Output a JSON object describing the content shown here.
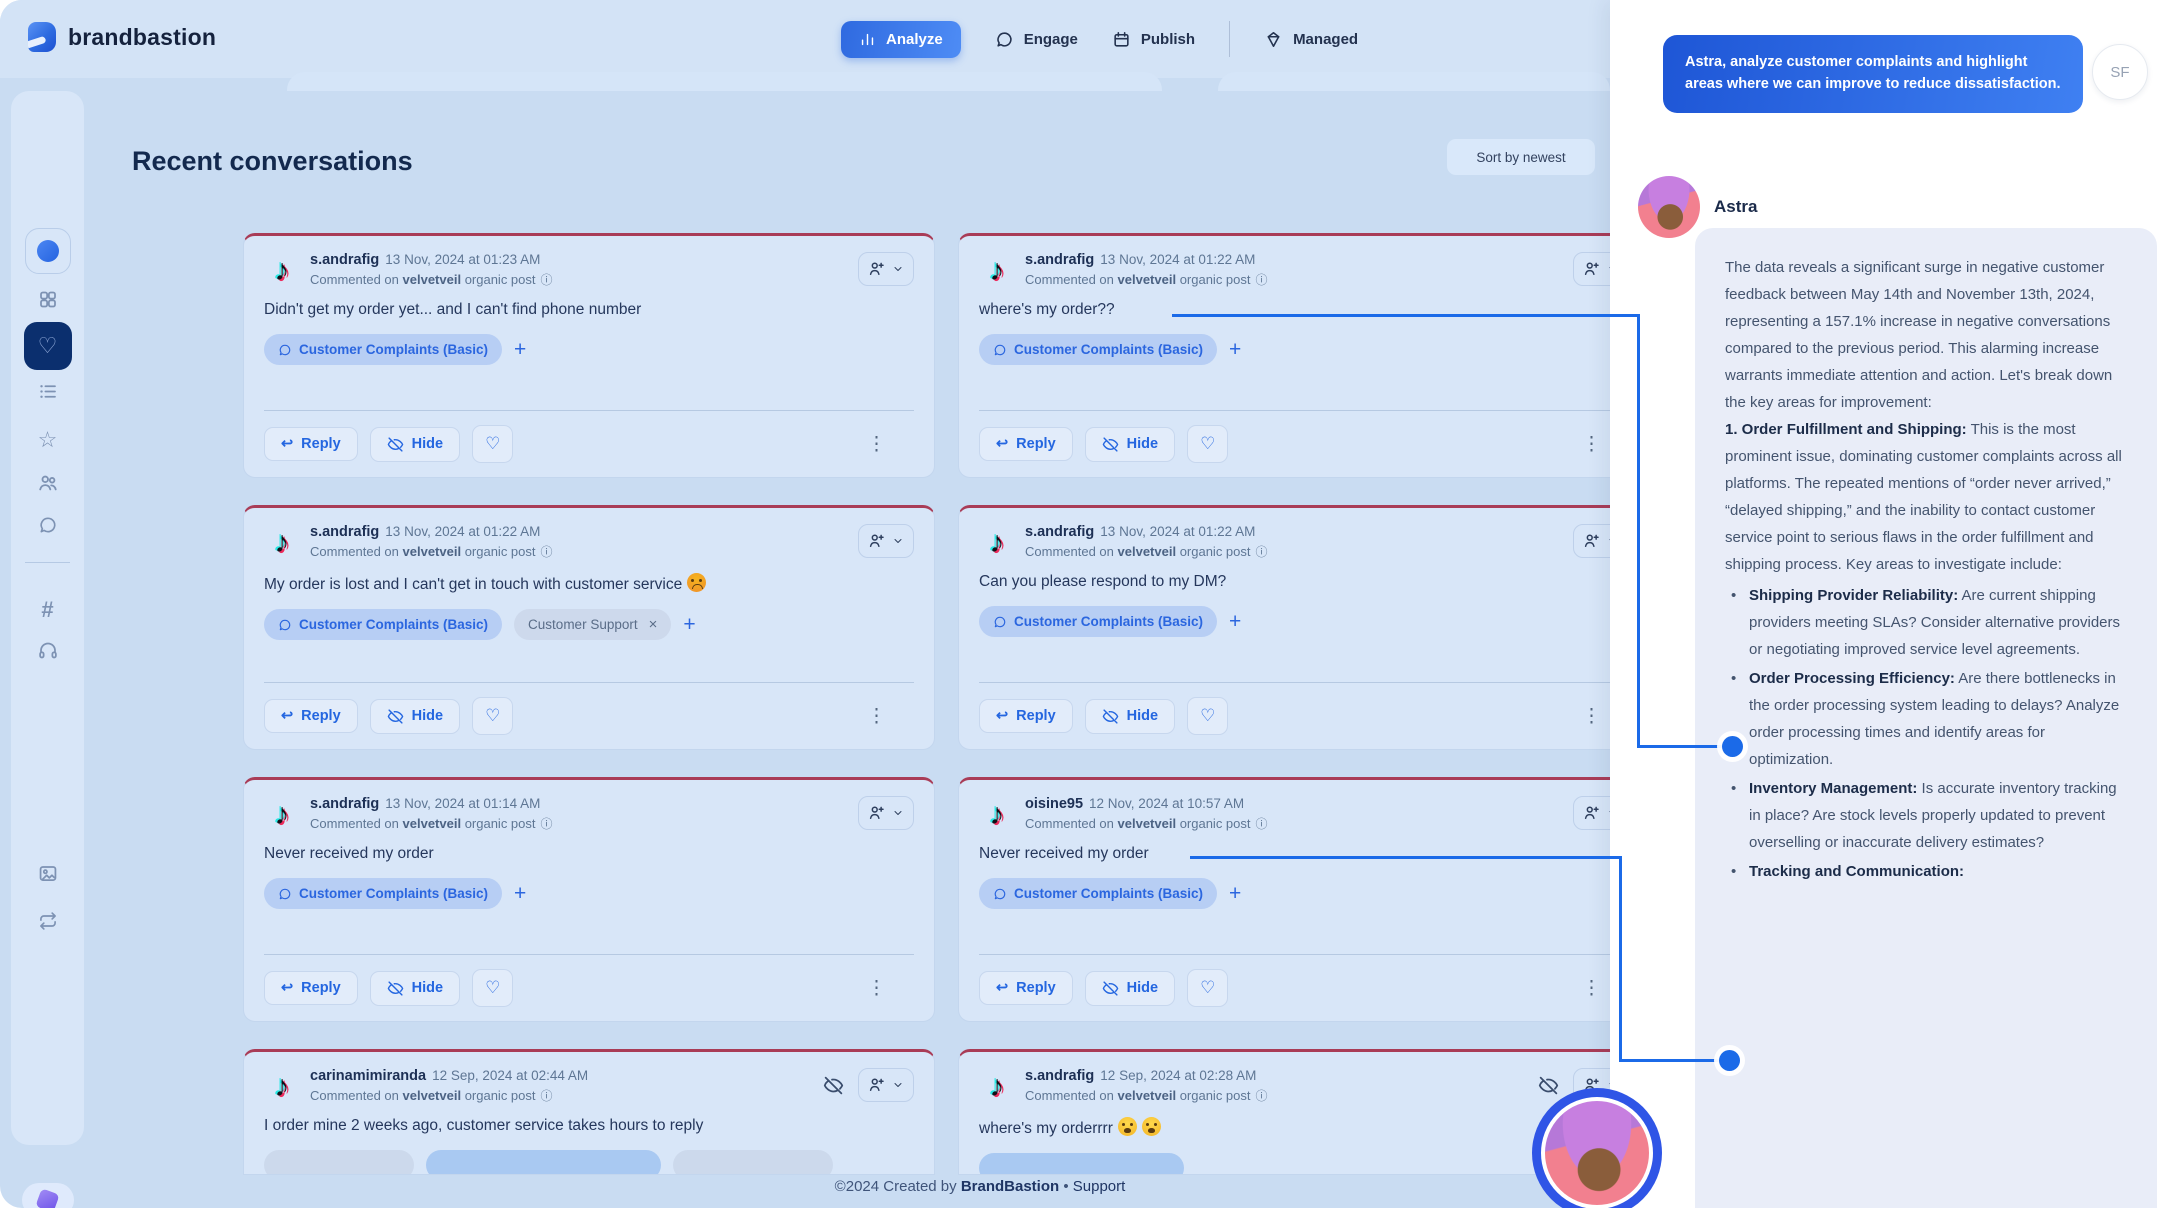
{
  "window": {
    "brand": "brandbastion"
  },
  "nav": {
    "tabs": [
      {
        "label": "Analyze",
        "icon": "bar-chart-icon",
        "active": true
      },
      {
        "label": "Engage",
        "icon": "chat-bubble-icon",
        "active": false
      },
      {
        "label": "Publish",
        "icon": "calendar-icon",
        "active": false
      },
      {
        "label": "Managed",
        "icon": "gem-icon",
        "active": false
      }
    ]
  },
  "sidebar": {
    "icons": [
      "workspace-dot-icon",
      "grid-icon",
      "heart-icon",
      "list-icon",
      "star-icon",
      "people-icon",
      "chat-icon",
      "hashtag-icon",
      "headphones-icon",
      "image-icon",
      "repeat-icon",
      "app-badge-icon"
    ],
    "active_icon": "heart-icon"
  },
  "content": {
    "title": "Recent conversations",
    "sort_button": "Sort by newest"
  },
  "labels": {
    "reply": "Reply",
    "hide": "Hide",
    "add_tag": "+",
    "commented_on": "Commented on",
    "organic_post": "organic post"
  },
  "cards": [
    {
      "username": "s.andrafig",
      "timestamp": "13 Nov, 2024 at 01:23 AM",
      "account": "velvetveil",
      "message": "Didn't get my order yet... and I can't find phone number",
      "tag_primary": "Customer Complaints (Basic)",
      "tag_secondary": "",
      "hidden": false,
      "truncated": false,
      "emojis": []
    },
    {
      "username": "s.andrafig",
      "timestamp": "13 Nov, 2024 at 01:22 AM",
      "account": "velvetveil",
      "message": "where's my order??",
      "tag_primary": "Customer Complaints (Basic)",
      "tag_secondary": "",
      "hidden": false,
      "truncated": false,
      "emojis": []
    },
    {
      "username": "s.andrafig",
      "timestamp": "13 Nov, 2024 at 01:22 AM",
      "account": "velvetveil",
      "message": "My order is lost and I can't get in touch with customer service",
      "tag_primary": "Customer Complaints (Basic)",
      "tag_secondary": "Customer Support",
      "hidden": false,
      "truncated": false,
      "emojis": [
        "angry-face"
      ]
    },
    {
      "username": "s.andrafig",
      "timestamp": "13 Nov, 2024 at 01:22 AM",
      "account": "velvetveil",
      "message": "Can you please respond to my DM?",
      "tag_primary": "Customer Complaints (Basic)",
      "tag_secondary": "",
      "hidden": false,
      "truncated": false,
      "emojis": []
    },
    {
      "username": "s.andrafig",
      "timestamp": "13 Nov, 2024 at 01:14 AM",
      "account": "velvetveil",
      "message": "Never received my order",
      "tag_primary": "Customer Complaints (Basic)",
      "tag_secondary": "",
      "hidden": false,
      "truncated": false,
      "emojis": []
    },
    {
      "username": "oisine95",
      "timestamp": "12 Nov, 2024 at 10:57 AM",
      "account": "velvetveil",
      "message": "Never received my order",
      "tag_primary": "Customer Complaints (Basic)",
      "tag_secondary": "",
      "hidden": false,
      "truncated": false,
      "emojis": []
    },
    {
      "username": "carinamimiranda",
      "timestamp": "12 Sep, 2024 at 02:44 AM",
      "account": "velvetveil",
      "message": "I order mine 2 weeks ago, customer service takes hours to reply",
      "tag_primary": "",
      "tag_secondary": "",
      "hidden": true,
      "truncated": true,
      "emojis": []
    },
    {
      "username": "s.andrafig",
      "timestamp": "12 Sep, 2024 at 02:28 AM",
      "account": "velvetveil",
      "message": "where's my orderrrr",
      "tag_primary": "",
      "tag_secondary": "",
      "hidden": true,
      "truncated": true,
      "emojis": [
        "crying-face",
        "crying-face"
      ]
    }
  ],
  "footer": {
    "copyright": "©2024 Created by",
    "brand": "BrandBastion",
    "separator": "•",
    "support_link": "Support"
  },
  "assistant_panel": {
    "user_message": "Astra, analyze customer complaints and highlight areas where we can improve to reduce dissatisfaction.",
    "user_avatar_initials": "SF",
    "assistant_name": "Astra",
    "response_intro": "The data reveals a significant surge in negative customer feedback between May 14th and November 13th, 2024, representing a 157.1% increase in negative conversations compared to the previous period. This alarming increase warrants immediate attention and action. Let's break down the key areas for improvement:",
    "section_title": "1. Order Fulfillment and Shipping:",
    "section_body": " This is the most prominent issue, dominating customer complaints across all platforms. The repeated mentions of “order never arrived,” “delayed shipping,” and the inability to contact customer service point to serious flaws in the order fulfillment and shipping process. Key areas to investigate include:",
    "bullets": [
      {
        "title": "Shipping Provider Reliability:",
        "body": " Are current shipping providers meeting SLAs? Consider alternative providers or negotiating improved service level agreements."
      },
      {
        "title": "Order Processing Efficiency:",
        "body": " Are there bottlenecks in the order processing system leading to delays? Analyze order processing times and identify areas for optimization."
      },
      {
        "title": "Inventory Management:",
        "body": " Is accurate inventory tracking in place? Are stock levels properly updated to prevent overselling or inaccurate delivery estimates?"
      },
      {
        "title": "Tracking and Communication:",
        "body": ""
      }
    ]
  },
  "colors": {
    "accent_blue": "#2e6be0",
    "card_top_border": "#a93c57",
    "connector_blue": "#1b6ae8",
    "user_bubble_gradient_start": "#1e56d6",
    "user_bubble_gradient_end": "#3f80f2",
    "workspace_bg": "#c9dcf2",
    "active_sidebar_bg": "#0b2f6e"
  }
}
